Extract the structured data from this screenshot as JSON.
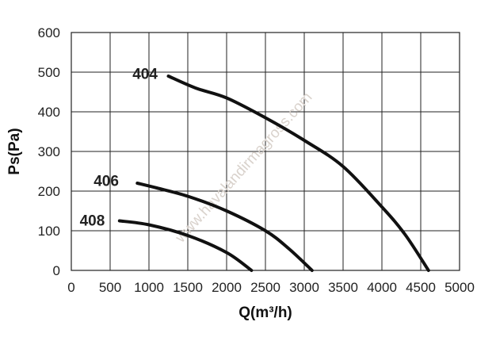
{
  "chart_data": {
    "type": "line",
    "xlabel": "Q(m³/h)",
    "ylabel": "Ps(Pa)",
    "xlim": [
      0,
      5000
    ],
    "ylim": [
      0,
      600
    ],
    "xticks": [
      "0",
      "500",
      "1000",
      "1500",
      "2000",
      "2500",
      "3000",
      "3500",
      "4000",
      "4500",
      "5000"
    ],
    "yticks": [
      "0",
      "100",
      "200",
      "300",
      "400",
      "500",
      "600"
    ],
    "grid": true,
    "watermark": "www.havalandirmagross.com",
    "series": [
      {
        "name": "404",
        "label_at": [
          950,
          495
        ],
        "points": [
          [
            1250,
            490
          ],
          [
            1600,
            460
          ],
          [
            2000,
            435
          ],
          [
            2500,
            385
          ],
          [
            3000,
            328
          ],
          [
            3500,
            262
          ],
          [
            4000,
            160
          ],
          [
            4300,
            90
          ],
          [
            4600,
            0
          ]
        ]
      },
      {
        "name": "406",
        "label_at": [
          450,
          225
        ],
        "points": [
          [
            850,
            220
          ],
          [
            1100,
            208
          ],
          [
            1500,
            187
          ],
          [
            2000,
            150
          ],
          [
            2500,
            100
          ],
          [
            2800,
            55
          ],
          [
            3100,
            0
          ]
        ]
      },
      {
        "name": "408",
        "label_at": [
          270,
          125
        ],
        "points": [
          [
            620,
            125
          ],
          [
            1000,
            115
          ],
          [
            1500,
            88
          ],
          [
            2000,
            45
          ],
          [
            2320,
            0
          ]
        ]
      }
    ]
  }
}
